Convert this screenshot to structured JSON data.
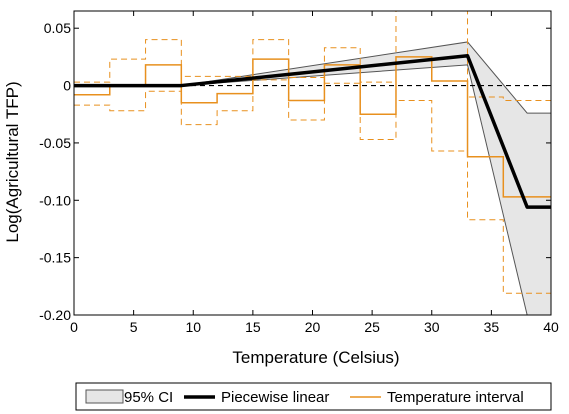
{
  "chart_data": {
    "type": "line",
    "xlabel": "Temperature (Celsius)",
    "ylabel": "Log(Agricultural TFP)",
    "xlim": [
      0,
      40
    ],
    "ylim": [
      -0.2,
      0.065
    ],
    "x_ticks": [
      0,
      5,
      10,
      15,
      20,
      25,
      30,
      35,
      40
    ],
    "x_tick_labels": [
      "0",
      "5",
      "10",
      "15",
      "20",
      "25",
      "30",
      "35",
      "40"
    ],
    "y_ticks": [
      0.05,
      0,
      -0.05,
      -0.1,
      -0.15,
      -0.2
    ],
    "y_tick_labels": [
      "0.05",
      "0",
      "-0.05",
      "-0.10",
      "-0.15",
      "-0.20"
    ],
    "zero_line": true,
    "grid": false,
    "legend_position": "bottom",
    "legend": {
      "ci_label": "95% CI",
      "piecewise_label": "Piecewise linear",
      "interval_label": "Temperature interval"
    },
    "colors": {
      "piecewise": "#000000",
      "interval": "#e8901e",
      "ci_fill": "#e6e6e6",
      "ci_edge": "#555555"
    },
    "piecewise_linear": {
      "x": [
        0,
        9,
        33,
        38,
        40
      ],
      "y": [
        0,
        0,
        0.026,
        -0.106,
        -0.106
      ]
    },
    "ci_band": {
      "x": [
        0,
        9,
        33,
        38,
        40
      ],
      "upper": [
        0,
        0,
        0.038,
        -0.024,
        -0.024
      ],
      "lower": [
        0,
        0,
        0.018,
        -0.2,
        -0.2
      ]
    },
    "temperature_interval": {
      "bins": [
        [
          0,
          3
        ],
        [
          3,
          6
        ],
        [
          6,
          9
        ],
        [
          9,
          12
        ],
        [
          12,
          15
        ],
        [
          15,
          18
        ],
        [
          18,
          21
        ],
        [
          21,
          24
        ],
        [
          24,
          27
        ],
        [
          27,
          30
        ],
        [
          30,
          33
        ],
        [
          33,
          36
        ],
        [
          36,
          40
        ]
      ],
      "estimate": [
        -0.008,
        0,
        0.018,
        -0.015,
        -0.007,
        0.023,
        -0.013,
        0.018,
        -0.025,
        0.025,
        0.004,
        -0.062,
        -0.097
      ],
      "upper": [
        0.003,
        0.023,
        0.04,
        0.008,
        0.008,
        0.04,
        0.007,
        0.033,
        0.003,
        0.065,
        0.065,
        -0.01,
        -0.013
      ],
      "lower": [
        -0.017,
        -0.022,
        -0.005,
        -0.034,
        -0.022,
        0.005,
        -0.03,
        0.002,
        -0.047,
        -0.013,
        -0.057,
        -0.117,
        -0.181
      ]
    }
  }
}
